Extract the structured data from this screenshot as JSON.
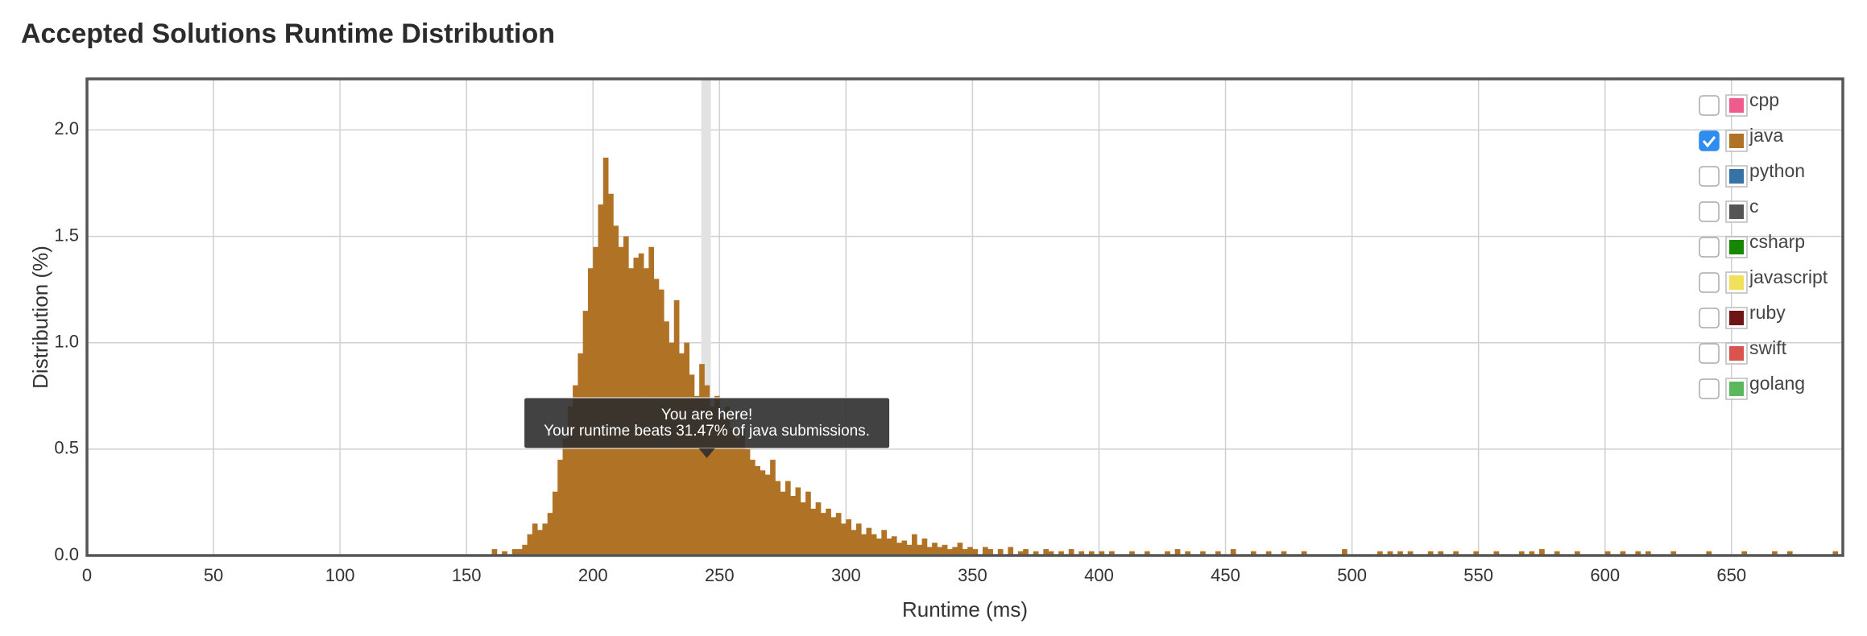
{
  "chart_data": {
    "type": "histogram",
    "title": "Accepted Solutions Runtime Distribution",
    "x_label": "Runtime (ms)",
    "y_label": "Distribution (%)",
    "xlim": [
      0,
      694
    ],
    "ylim": [
      0,
      2.24
    ],
    "xticks": [
      0,
      50,
      100,
      150,
      200,
      250,
      300,
      350,
      400,
      450,
      500,
      550,
      600,
      650
    ],
    "yticks": [
      {
        "value": 0,
        "label": "0.0"
      },
      {
        "value": 0.5,
        "label": "0.5"
      },
      {
        "value": 1,
        "label": "1.0"
      },
      {
        "value": 1.5,
        "label": "1.5"
      },
      {
        "value": 2,
        "label": "2.0"
      }
    ],
    "grid": true,
    "legend_position": "top-right",
    "legend": [
      {
        "name": "cpp",
        "color": "#ef5b8c",
        "checked": false
      },
      {
        "name": "java",
        "color": "#b07225",
        "checked": true
      },
      {
        "name": "python",
        "color": "#3572a5",
        "checked": false
      },
      {
        "name": "c",
        "color": "#555555",
        "checked": false
      },
      {
        "name": "csharp",
        "color": "#178600",
        "checked": false
      },
      {
        "name": "javascript",
        "color": "#f1e05a",
        "checked": false
      },
      {
        "name": "ruby",
        "color": "#701516",
        "checked": false
      },
      {
        "name": "swift",
        "color": "#d9534f",
        "checked": false
      },
      {
        "name": "golang",
        "color": "#5cb85c",
        "checked": false
      }
    ],
    "annotation": {
      "x": 245,
      "title": "You are here!",
      "text": "Your runtime beats 31.47% of java submissions."
    },
    "x": [
      160,
      164,
      168,
      170,
      172,
      174,
      176,
      178,
      180,
      182,
      184,
      186,
      188,
      190,
      192,
      194,
      196,
      198,
      200,
      202,
      204,
      206,
      208,
      210,
      212,
      214,
      216,
      218,
      220,
      222,
      224,
      226,
      228,
      230,
      232,
      234,
      236,
      238,
      240,
      242,
      244,
      246,
      248,
      250,
      252,
      254,
      256,
      258,
      260,
      262,
      264,
      266,
      268,
      270,
      272,
      274,
      276,
      278,
      280,
      282,
      284,
      286,
      288,
      290,
      292,
      294,
      296,
      298,
      300,
      302,
      304,
      306,
      308,
      310,
      312,
      314,
      316,
      318,
      320,
      322,
      324,
      326,
      328,
      330,
      332,
      334,
      336,
      338,
      340,
      342,
      344,
      346,
      348,
      350,
      354,
      356,
      360,
      364,
      368,
      370,
      374,
      378,
      380,
      384,
      388,
      392,
      396,
      400,
      404,
      412,
      418,
      426,
      430,
      434,
      440,
      446,
      452,
      460,
      466,
      472,
      480,
      496,
      510,
      514,
      518,
      522,
      530,
      534,
      540,
      548,
      556,
      566,
      570,
      574,
      580,
      588,
      600,
      606,
      612,
      616,
      626,
      640,
      654,
      666,
      672,
      690
    ],
    "values": [
      0.03,
      0.02,
      0.03,
      0.03,
      0.05,
      0.1,
      0.15,
      0.12,
      0.15,
      0.2,
      0.3,
      0.45,
      0.55,
      0.7,
      0.8,
      0.95,
      1.15,
      1.35,
      1.45,
      1.65,
      1.87,
      1.7,
      1.55,
      1.45,
      1.5,
      1.35,
      1.4,
      1.42,
      1.35,
      1.45,
      1.3,
      1.25,
      1.1,
      1.0,
      1.2,
      0.95,
      1.0,
      0.85,
      0.75,
      0.9,
      0.8,
      0.7,
      0.75,
      0.65,
      0.7,
      0.6,
      0.55,
      0.6,
      0.5,
      0.45,
      0.42,
      0.4,
      0.38,
      0.45,
      0.35,
      0.3,
      0.35,
      0.28,
      0.32,
      0.25,
      0.3,
      0.22,
      0.25,
      0.2,
      0.22,
      0.18,
      0.2,
      0.15,
      0.17,
      0.12,
      0.15,
      0.1,
      0.13,
      0.1,
      0.08,
      0.12,
      0.08,
      0.09,
      0.06,
      0.07,
      0.05,
      0.1,
      0.05,
      0.08,
      0.04,
      0.06,
      0.04,
      0.05,
      0.03,
      0.04,
      0.06,
      0.03,
      0.04,
      0.03,
      0.04,
      0.03,
      0.03,
      0.04,
      0.02,
      0.03,
      0.02,
      0.03,
      0.02,
      0.02,
      0.03,
      0.02,
      0.02,
      0.02,
      0.02,
      0.02,
      0.02,
      0.02,
      0.03,
      0.02,
      0.02,
      0.02,
      0.03,
      0.02,
      0.02,
      0.02,
      0.02,
      0.03,
      0.02,
      0.02,
      0.02,
      0.02,
      0.02,
      0.02,
      0.02,
      0.02,
      0.02,
      0.02,
      0.02,
      0.03,
      0.02,
      0.02,
      0.02,
      0.02,
      0.02,
      0.02,
      0.02,
      0.02,
      0.02,
      0.02,
      0.02,
      0.02
    ]
  }
}
